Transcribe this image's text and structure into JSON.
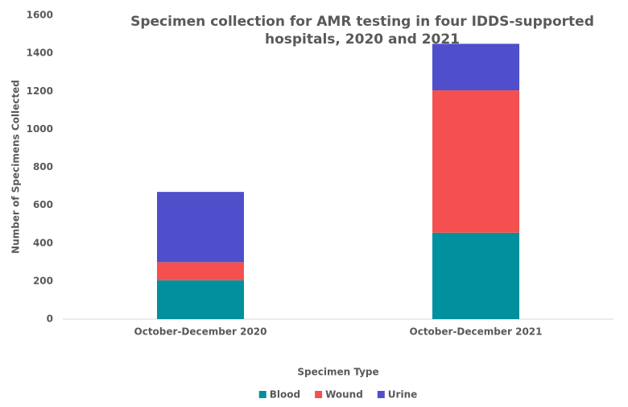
{
  "chart_data": {
    "type": "stacked_bar",
    "title": "Specimen collection for AMR testing in four IDDS-supported hospitals, 2020 and 2021",
    "x_label": "Specimen Type",
    "y_label": "Number of Specimens Collected",
    "categories": [
      "October-December 2020",
      "October-December 2021"
    ],
    "series": [
      {
        "name": "Blood",
        "color": "#00909e",
        "values": [
          205,
          455
        ]
      },
      {
        "name": "Wound",
        "color": "#f55050",
        "values": [
          95,
          750
        ]
      },
      {
        "name": "Urine",
        "color": "#4f4fcc",
        "values": [
          370,
          245
        ]
      }
    ],
    "ylim": [
      0,
      1600
    ],
    "yticks": [
      0,
      200,
      400,
      600,
      800,
      1000,
      1200,
      1400,
      1600
    ],
    "grid": false,
    "legend": "bottom"
  }
}
